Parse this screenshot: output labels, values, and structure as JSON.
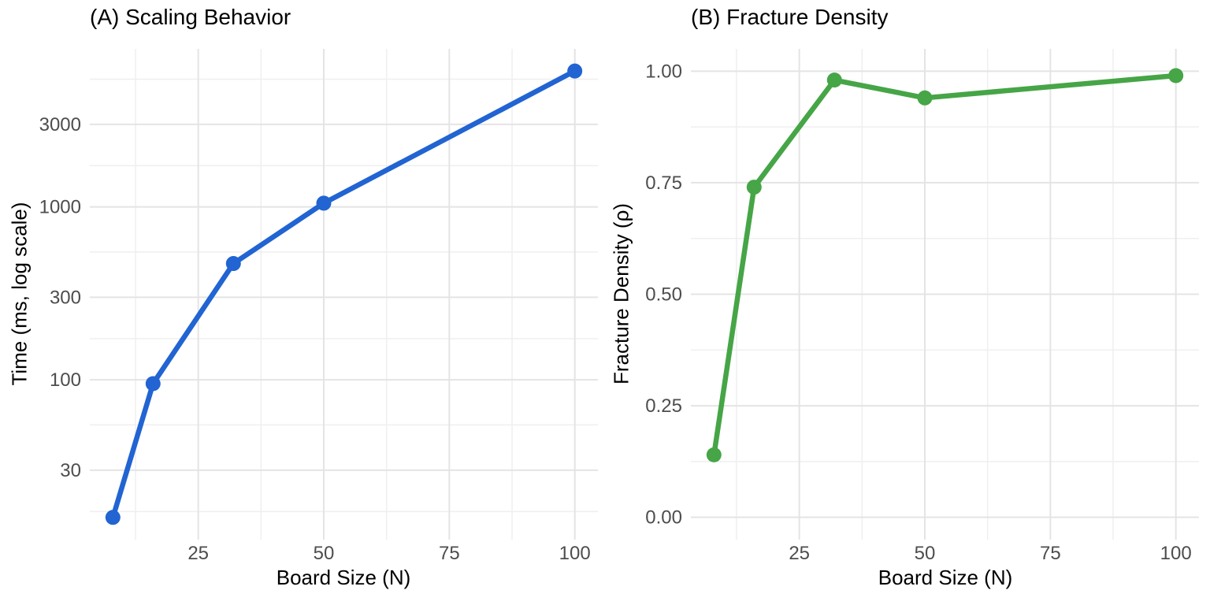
{
  "figure": {
    "background": "#ffffff",
    "tick_label_color": "#4d4d4d",
    "grid_major_color": "#e4e4e4",
    "grid_minor_color": "#efefef"
  },
  "chart_data": [
    {
      "type": "line",
      "panel": "A",
      "title": "(A) Scaling Behavior",
      "xlabel": "Board Size (N)",
      "ylabel": "Time (ms, log scale)",
      "color": "#2164d2",
      "x": [
        8,
        16,
        32,
        50,
        100
      ],
      "y": [
        16,
        95,
        470,
        1050,
        6100
      ],
      "yscale": "log10",
      "xlim": [
        3.4,
        104.6
      ],
      "ylim_log10": [
        1.0756,
        3.9137
      ],
      "xticks": [
        25,
        50,
        75,
        100
      ],
      "xtick_labels": [
        "25",
        "50",
        "75",
        "100"
      ],
      "xminor": [
        12.5,
        37.5,
        62.5,
        87.5
      ],
      "yticks": [
        30,
        100,
        300,
        1000,
        3000
      ],
      "ytick_labels": [
        "30",
        "100",
        "300",
        "1000",
        "3000"
      ],
      "yminor": [
        17.3,
        54.8,
        173,
        548,
        1732,
        5477
      ],
      "grid": true,
      "legend": false,
      "marker": "circle"
    },
    {
      "type": "line",
      "panel": "B",
      "title": "(B) Fracture Density",
      "xlabel": "Board Size (N)",
      "ylabel": "Fracture Density (ρ)",
      "color": "#46a546",
      "x": [
        8,
        16,
        32,
        50,
        100
      ],
      "y": [
        0.14,
        0.74,
        0.98,
        0.94,
        0.99
      ],
      "yscale": "linear",
      "xlim": [
        3.4,
        104.6
      ],
      "ylim": [
        -0.05,
        1.05
      ],
      "xticks": [
        25,
        50,
        75,
        100
      ],
      "xtick_labels": [
        "25",
        "50",
        "75",
        "100"
      ],
      "xminor": [
        12.5,
        37.5,
        62.5,
        87.5
      ],
      "yticks": [
        0,
        0.25,
        0.5,
        0.75,
        1.0
      ],
      "ytick_labels": [
        "0.00",
        "0.25",
        "0.50",
        "0.75",
        "1.00"
      ],
      "yminor": [
        0.125,
        0.375,
        0.625,
        0.875
      ],
      "grid": true,
      "legend": false,
      "marker": "circle"
    }
  ]
}
